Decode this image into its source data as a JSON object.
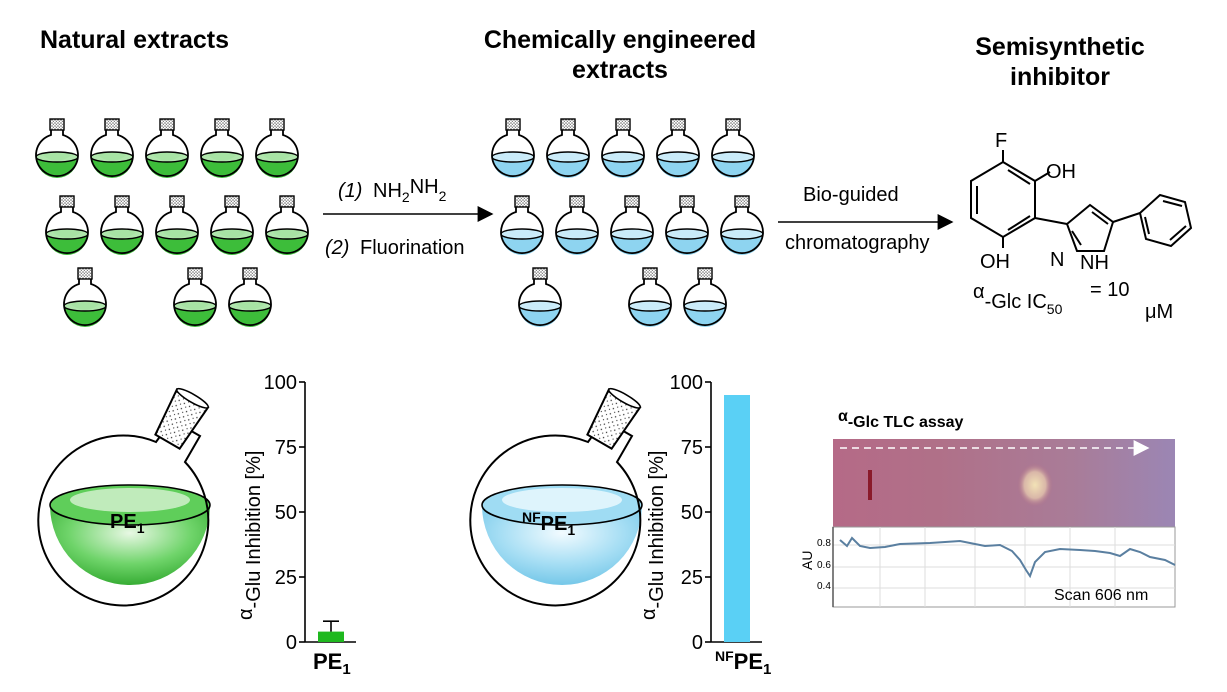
{
  "headings": {
    "natural": "Natural extracts",
    "engineered_line1": "Chemically engineered",
    "engineered_line2": "extracts",
    "semisynthetic_line1": "Semisynthetic",
    "semisynthetic_line2": "inhibitor"
  },
  "step1": {
    "r1_num": "(1)",
    "r1_text": "NH",
    "r1_sub1": "2",
    "r1_mid": "NH",
    "r1_sub2": "2",
    "r2_num": "(2)",
    "r2_text": "Fluorination"
  },
  "step2": {
    "line1": "Bio-guided",
    "line2": "chromatography"
  },
  "molecule": {
    "F": "F",
    "OH_top": "OH",
    "OH_bottom": "OH",
    "N": "N",
    "NH": "NH",
    "ic50_alpha": "α",
    "ic50_label": "-Glc IC",
    "ic50_sub": "50",
    "ic50_value": "= 10",
    "ic50_unit": "μM"
  },
  "flasks": {
    "natural_label": "PE",
    "natural_sub": "1",
    "engineered_sup": "NF",
    "engineered_label": "PE",
    "engineered_sub": "1",
    "colors": {
      "green": "#3cbf3c",
      "blue": "#7fd0ee"
    }
  },
  "chart_data": [
    {
      "type": "bar",
      "categories": [
        "PE1"
      ],
      "category_label": "PE",
      "category_sub": "1",
      "values": [
        4
      ],
      "error": [
        4
      ],
      "ylabel_alpha": "α",
      "ylabel": "-Glu Inhibition [%]",
      "yticks": [
        "0",
        "25",
        "50",
        "75",
        "100"
      ],
      "ylim": [
        0,
        100
      ],
      "color": "#1fb81f"
    },
    {
      "type": "bar",
      "categories": [
        "NFPE1"
      ],
      "category_sup": "NF",
      "category_label": "PE",
      "category_sub": "1",
      "values": [
        95
      ],
      "ylabel_alpha": "α",
      "ylabel": "-Glu Inhibition [%]",
      "yticks": [
        "0",
        "25",
        "50",
        "75",
        "100"
      ],
      "ylim": [
        0,
        100
      ],
      "color": "#5ad0f5"
    }
  ],
  "tlc": {
    "title_alpha": "α",
    "title": "-Glc TLC assay",
    "y_label": "AU",
    "y_ticks": [
      "0.8",
      "0.6",
      "0.4"
    ],
    "scan_label": "Scan 606 nm"
  }
}
